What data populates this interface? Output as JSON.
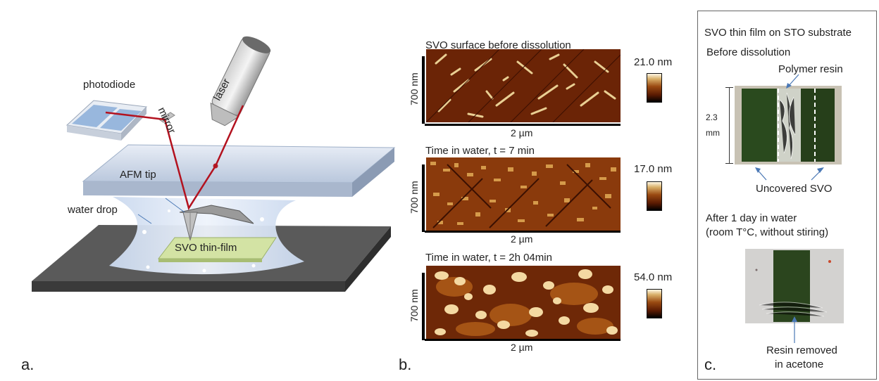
{
  "panel_a": {
    "letter": "a.",
    "labels": {
      "photodiode": "photodiode",
      "mirror": "mirror",
      "laser": "laser",
      "afm_tip": "AFM tip",
      "water_drop": "water drop",
      "svo_film": "SVO thin-film"
    }
  },
  "panel_b": {
    "letter": "b.",
    "images": [
      {
        "title": "SVO surface before dissolution",
        "scale_max": "21.0 nm",
        "y_label": "700 nm",
        "x_label": "2 µm"
      },
      {
        "title": "Time in water, t = 7 min",
        "scale_max": "17.0 nm",
        "y_label": "700 nm",
        "x_label": "2 µm"
      },
      {
        "title": "Time in water, t = 2h 04min",
        "scale_max": "54.0 nm",
        "y_label": "700 nm",
        "x_label": "2 µm"
      }
    ]
  },
  "panel_c": {
    "letter": "c.",
    "title": "SVO thin film on STO substrate",
    "before_label": "Before dissolution",
    "polymer_label": "Polymer resin",
    "size_label_num": "2.3",
    "size_label_unit": "mm",
    "uncovered_label": "Uncovered SVO",
    "after_line1": "After 1 day in water",
    "after_line2": "(room T°C, without stiring)",
    "removed_line1": "Resin removed",
    "removed_line2": "in acetone"
  }
}
